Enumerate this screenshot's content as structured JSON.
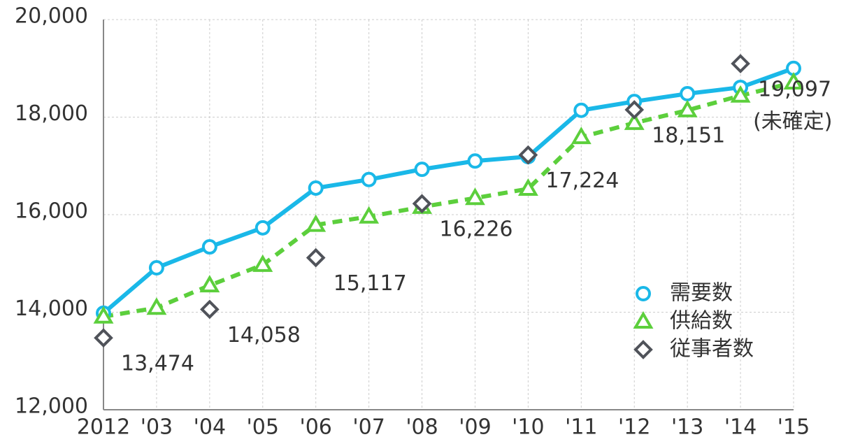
{
  "chart_data": {
    "type": "line",
    "categories": [
      "2012",
      "'03",
      "'04",
      "'05",
      "'06",
      "'07",
      "'08",
      "'09",
      "'10",
      "'11",
      "'12",
      "'13",
      "'14",
      "'15"
    ],
    "series": [
      {
        "name": "需要数",
        "color": "#1ab8e8",
        "marker": "circle",
        "line": "solid",
        "values": [
          13980,
          14910,
          15340,
          15730,
          16545,
          16720,
          16930,
          17100,
          17190,
          18140,
          18320,
          18480,
          18610,
          19000
        ]
      },
      {
        "name": "供給数",
        "color": "#5ccf3c",
        "marker": "triangle",
        "line": "dashed",
        "values": [
          13910,
          14090,
          14550,
          14970,
          15790,
          15960,
          16160,
          16340,
          16530,
          17590,
          17880,
          18140,
          18440,
          18710
        ]
      },
      {
        "name": "従事者数",
        "color": "#50535a",
        "marker": "diamond",
        "line": "none",
        "values": [
          13474,
          null,
          14058,
          null,
          15117,
          null,
          16226,
          null,
          17224,
          null,
          18151,
          null,
          19097,
          null
        ],
        "value_labels": [
          "13,474",
          null,
          "14,058",
          null,
          "15,117",
          null,
          "16,226",
          null,
          "17,224",
          null,
          "18,151",
          null,
          "19,097",
          null
        ]
      }
    ],
    "annotations": [
      {
        "text": "(未確定)",
        "category_index": 12
      }
    ],
    "ylim": [
      12000,
      20000
    ],
    "yticks": [
      {
        "value": 12000,
        "label": "12,000"
      },
      {
        "value": 14000,
        "label": "14,000"
      },
      {
        "value": 16000,
        "label": "16,000"
      },
      {
        "value": 18000,
        "label": "18,000"
      },
      {
        "value": 20000,
        "label": "20,000"
      }
    ],
    "grid": true,
    "legend": "lower right"
  }
}
